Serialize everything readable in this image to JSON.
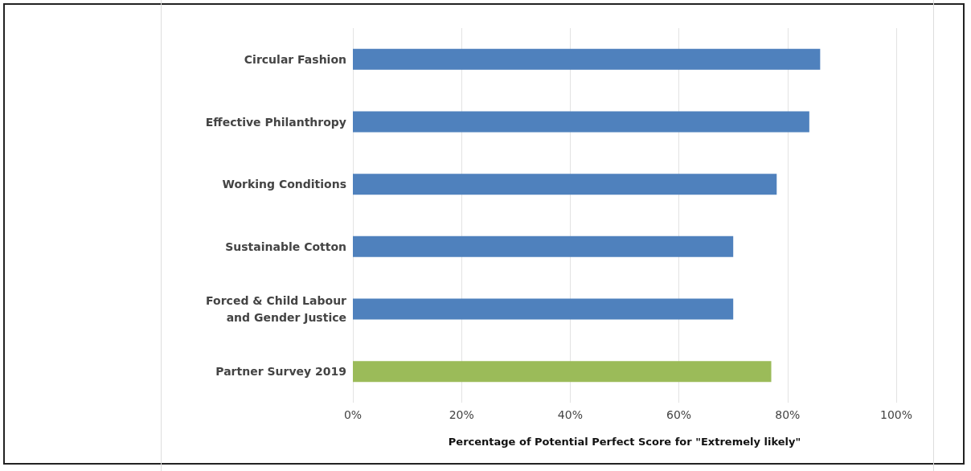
{
  "chart_data": {
    "type": "bar",
    "orientation": "horizontal",
    "xlabel": "Percentage of Potential Perfect Score for \"Extremely likely\"",
    "categories": [
      "Circular Fashion",
      "Effective Philanthropy",
      "Working Conditions",
      "Sustainable Cotton",
      "Forced & Child Labour\nand Gender Justice",
      "Partner Survey 2019"
    ],
    "values": [
      86,
      84,
      78,
      70,
      70,
      77
    ],
    "colors": [
      "#4f81bd",
      "#4f81bd",
      "#4f81bd",
      "#4f81bd",
      "#4f81bd",
      "#9bbb59"
    ],
    "xlim": [
      0,
      100
    ],
    "xticks": [
      {
        "value": 0,
        "label": "0%"
      },
      {
        "value": 20,
        "label": "20%"
      },
      {
        "value": 40,
        "label": "40%"
      },
      {
        "value": 60,
        "label": "60%"
      },
      {
        "value": 80,
        "label": "80%"
      },
      {
        "value": 100,
        "label": "100%"
      }
    ],
    "grid": "x"
  }
}
